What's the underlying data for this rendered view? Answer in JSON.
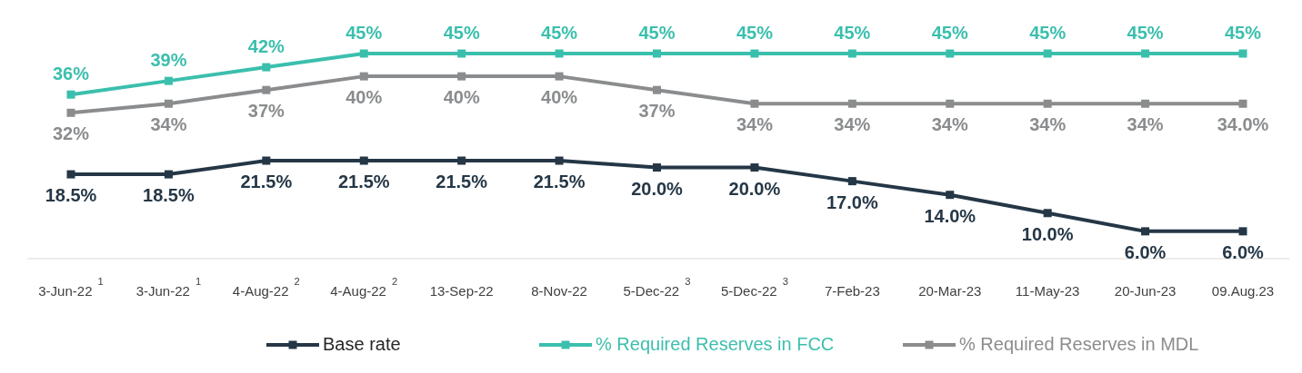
{
  "chart_data": {
    "type": "line",
    "categories": [
      "3-Jun-22$^{1}$",
      "3-Jun-22$^{1}$",
      "4-Aug-22$^{2}$",
      "4-Aug-22$^{2}$",
      "13-Sep-22",
      "8-Nov-22",
      "5-Dec-22$^{3}$",
      "5-Dec-22$^{3}$",
      "7-Feb-23",
      "20-Mar-23",
      "11-May-23",
      "20-Jun-23",
      "09.Aug.23"
    ],
    "series": [
      {
        "name": "Base rate",
        "color": "#253746",
        "values": [
          18.5,
          18.5,
          21.5,
          21.5,
          21.5,
          21.5,
          20.0,
          20.0,
          17.0,
          14.0,
          10.0,
          6.0,
          6.0
        ],
        "value_labels": [
          "18.5%",
          "18.5%",
          "21.5%",
          "21.5%",
          "21.5%",
          "21.5%",
          "20.0%",
          "20.0%",
          "17.0%",
          "14.0%",
          "10.0%",
          "6.0%",
          "6.0%"
        ]
      },
      {
        "name": "% Required Reserves in FCC",
        "color": "#3bbfad",
        "values": [
          36,
          39,
          42,
          45,
          45,
          45,
          45,
          45,
          45,
          45,
          45,
          45,
          45
        ],
        "value_labels": [
          "36%",
          "39%",
          "42%",
          "45%",
          "45%",
          "45%",
          "45%",
          "45%",
          "45%",
          "45%",
          "45%",
          "45%",
          "45%"
        ]
      },
      {
        "name": "% Required Reserves in MDL",
        "color": "#8a8c8e",
        "values": [
          32,
          34,
          37,
          40,
          40,
          40,
          37,
          34,
          34,
          34,
          34,
          34,
          34.0
        ],
        "value_labels": [
          "32%",
          "34%",
          "37%",
          "40%",
          "40%",
          "40%",
          "37%",
          "34%",
          "34%",
          "34%",
          "34%",
          "34%",
          "34.0%"
        ]
      }
    ],
    "legend": "bottom",
    "marker": "square",
    "line_style": "solid"
  }
}
